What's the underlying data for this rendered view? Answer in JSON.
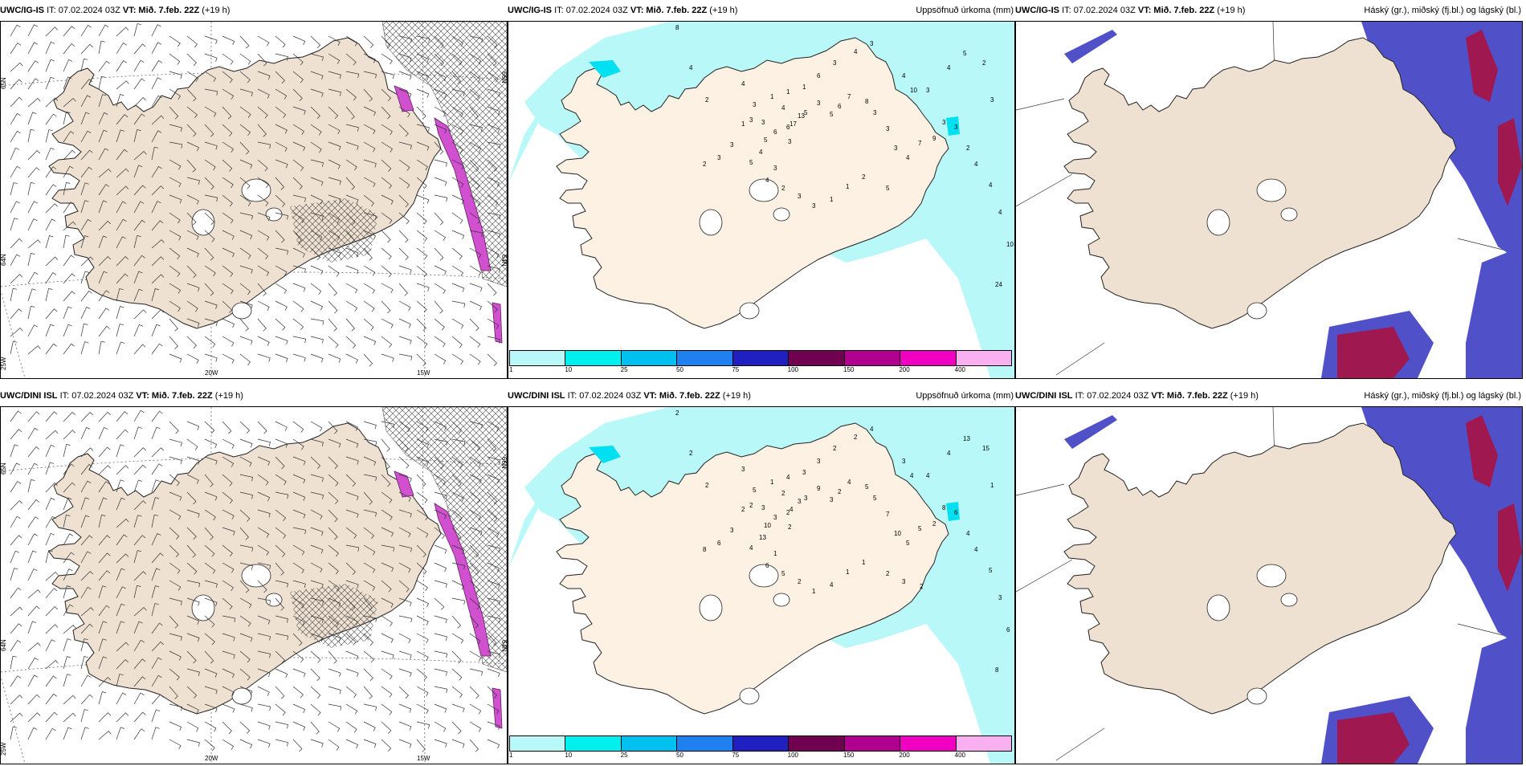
{
  "rows": [
    {
      "model": "UWC/IG-IS",
      "it": "IT: 07.02.2024 03Z",
      "vt_label": "VT:",
      "vt_value": "Mið. 7.feb. 22Z",
      "lead": "(+19 h)",
      "precip_numbers": [
        "8",
        "4",
        "2",
        "4",
        "3",
        "3",
        "4",
        "13",
        "17",
        "6",
        "5",
        "4",
        "5",
        "3",
        "3",
        "6",
        "5",
        "3",
        "5",
        "6",
        "7",
        "8",
        "3",
        "3",
        "3",
        "4",
        "7",
        "9",
        "3",
        "3",
        "2",
        "4",
        "4",
        "4",
        "10",
        "24",
        "4",
        "10",
        "3",
        "4",
        "5",
        "2",
        "3",
        "3",
        "4",
        "3",
        "6",
        "1",
        "1",
        "1",
        "3",
        "1",
        "3",
        "3",
        "2",
        "4",
        "2",
        "3",
        "3",
        "1",
        "1",
        "2",
        "5"
      ],
      "precip_row_label": "Uppsöfnuð úrkoma (mm)"
    },
    {
      "model": "UWC/DINI ISL",
      "it": "IT: 07.02.2024 03Z",
      "vt_label": "VT:",
      "vt_value": "Mið. 7.feb. 22Z",
      "lead": "(+19 h)",
      "precip_numbers": [
        "2",
        "2",
        "2",
        "3",
        "2",
        "3",
        "2",
        "3",
        "4",
        "3",
        "10",
        "13",
        "4",
        "1",
        "2",
        "2",
        "3",
        "9",
        "3",
        "2",
        "4",
        "5",
        "5",
        "7",
        "10",
        "5",
        "5",
        "2",
        "8",
        "6",
        "4",
        "4",
        "5",
        "3",
        "6",
        "8",
        "3",
        "4",
        "4",
        "4",
        "13",
        "15",
        "1",
        "4",
        "2",
        "2",
        "3",
        "3",
        "4",
        "1",
        "5",
        "2",
        "3",
        "6",
        "8",
        "6",
        "5",
        "2",
        "1",
        "4",
        "1",
        "1",
        "2",
        "3",
        "2"
      ],
      "precip_row_label": "Uppsöfnuð úrkoma (mm)"
    }
  ],
  "precip_title": "Uppsöfnuð úrkoma (mm)",
  "cloud_title": "Háský (gr.), miðský (fj.bl.) og lágský (bl.)",
  "lat_labels": [
    "65N",
    "64N",
    "66N"
  ],
  "lat_65": "65N",
  "lat_64": "64N",
  "lat_66": "66N",
  "lon_labels": [
    "20W",
    "15W",
    "25W"
  ],
  "lon_20": "20W",
  "lon_15": "15W",
  "lon_25": "25W",
  "colorbar": {
    "ticks": [
      "1",
      "10",
      "25",
      "50",
      "75",
      "100",
      "150",
      "200",
      "400"
    ],
    "colors": [
      "#b8f8f8",
      "#00f0f0",
      "#00c0f0",
      "#2080f0",
      "#2020c0",
      "#700050",
      "#b00090",
      "#f000c0",
      "#f8b0f0"
    ]
  },
  "colors": {
    "land": "#efe1d1",
    "land_precip": "#fdf1e3",
    "precip_light": "#b8f8f8",
    "high_cloud": "#5050c8",
    "low_cloud": "#a01850",
    "light_blue": "#50b8f8",
    "magenta": "#d050d0"
  }
}
